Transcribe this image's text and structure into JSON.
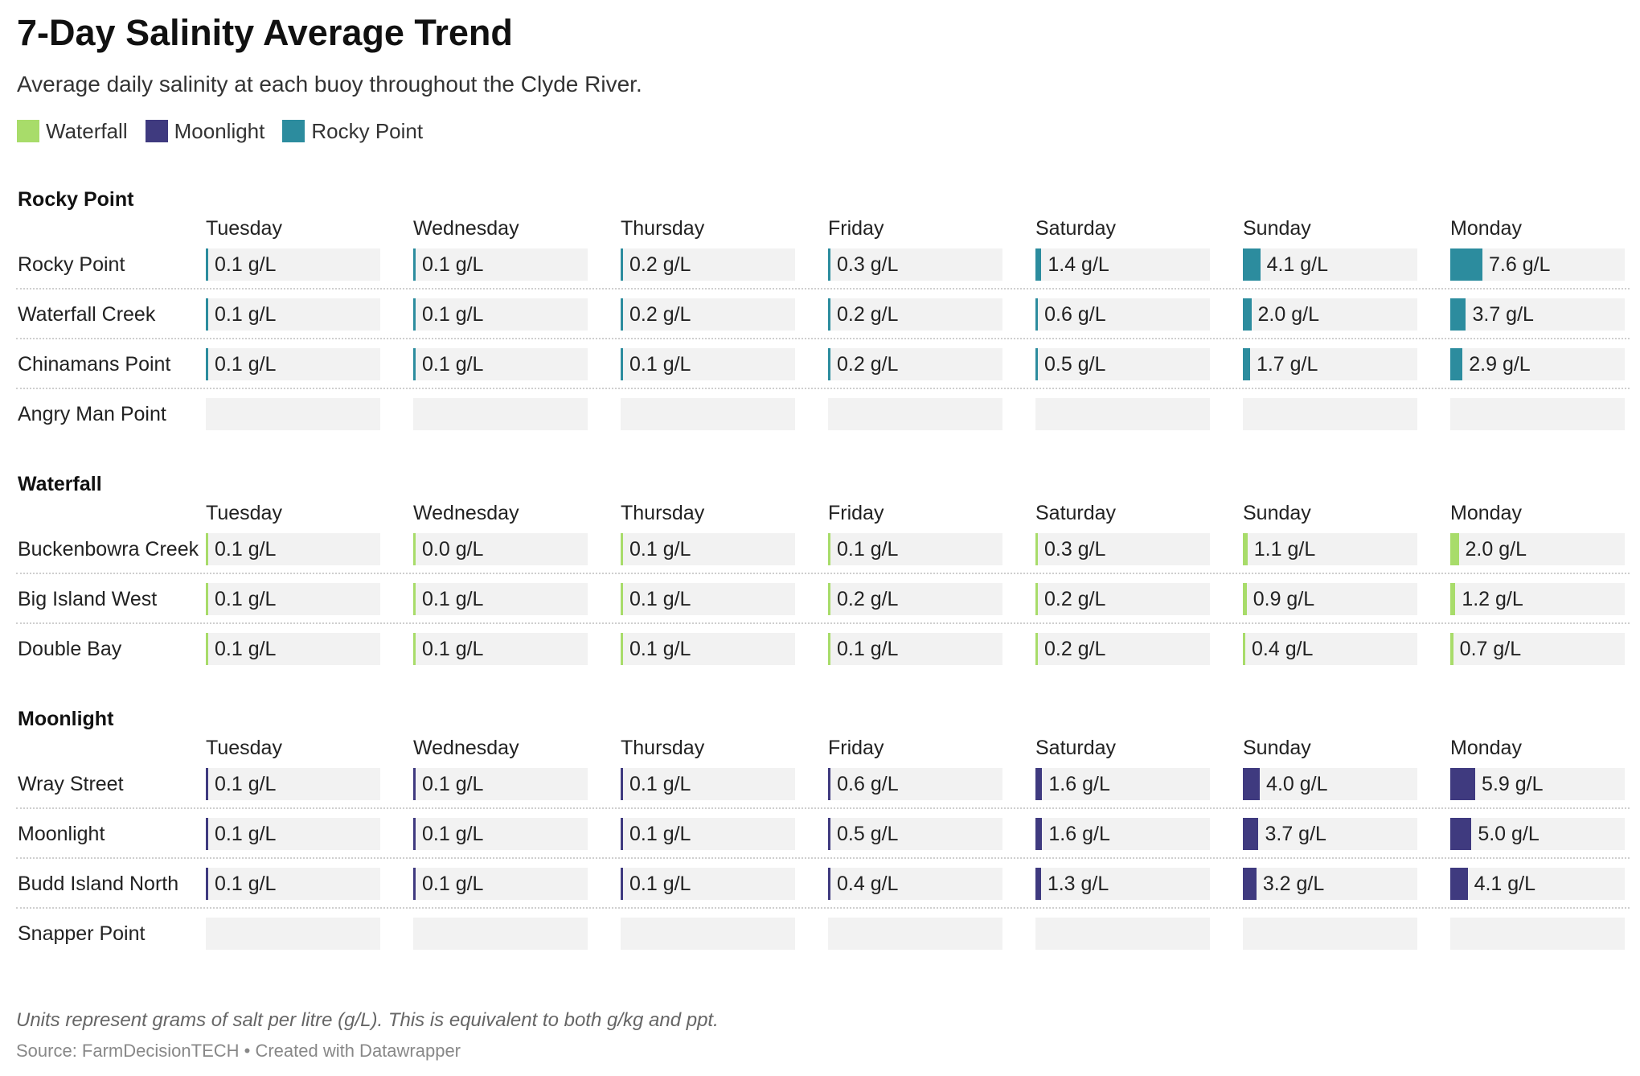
{
  "chart_data": {
    "type": "table",
    "title": "7-Day Salinity Average Trend",
    "subtitle": "Average daily salinity at each buoy throughout the Clyde River.",
    "unit": "g/L",
    "x": [
      "Tuesday",
      "Wednesday",
      "Thursday",
      "Friday",
      "Saturday",
      "Sunday",
      "Monday"
    ],
    "value_max": 7.6,
    "legend": [
      {
        "name": "Waterfall",
        "color": "#a8dc6a"
      },
      {
        "name": "Moonlight",
        "color": "#3f3a7f"
      },
      {
        "name": "Rocky Point",
        "color": "#2c8c9e"
      }
    ],
    "groups": [
      {
        "name": "Rocky Point",
        "color": "#2c8c9e",
        "rows": [
          {
            "name": "Rocky Point",
            "values": [
              0.1,
              0.1,
              0.2,
              0.3,
              1.4,
              4.1,
              7.6
            ],
            "labels": [
              "0.1 g/L",
              "0.1 g/L",
              "0.2 g/L",
              "0.3 g/L",
              "1.4 g/L",
              "4.1 g/L",
              "7.6 g/L"
            ]
          },
          {
            "name": "Waterfall Creek",
            "values": [
              0.1,
              0.1,
              0.2,
              0.2,
              0.6,
              2.0,
              3.7
            ],
            "labels": [
              "0.1 g/L",
              "0.1 g/L",
              "0.2 g/L",
              "0.2 g/L",
              "0.6 g/L",
              "2.0 g/L",
              "3.7 g/L"
            ]
          },
          {
            "name": "Chinamans Point",
            "values": [
              0.1,
              0.1,
              0.1,
              0.2,
              0.5,
              1.7,
              2.9
            ],
            "labels": [
              "0.1 g/L",
              "0.1 g/L",
              "0.1 g/L",
              "0.2 g/L",
              "0.5 g/L",
              "1.7 g/L",
              "2.9 g/L"
            ]
          },
          {
            "name": "Angry Man Point",
            "values": [
              null,
              null,
              null,
              null,
              null,
              null,
              null
            ],
            "labels": [
              "",
              "",
              "",
              "",
              "",
              "",
              ""
            ]
          }
        ]
      },
      {
        "name": "Waterfall",
        "color": "#a8dc6a",
        "rows": [
          {
            "name": "Buckenbowra Creek",
            "values": [
              0.1,
              0.0,
              0.1,
              0.1,
              0.3,
              1.1,
              2.0
            ],
            "labels": [
              "0.1 g/L",
              "0.0 g/L",
              "0.1 g/L",
              "0.1 g/L",
              "0.3 g/L",
              "1.1 g/L",
              "2.0 g/L"
            ]
          },
          {
            "name": "Big Island West",
            "values": [
              0.1,
              0.1,
              0.1,
              0.2,
              0.2,
              0.9,
              1.2
            ],
            "labels": [
              "0.1 g/L",
              "0.1 g/L",
              "0.1 g/L",
              "0.2 g/L",
              "0.2 g/L",
              "0.9 g/L",
              "1.2 g/L"
            ]
          },
          {
            "name": "Double Bay",
            "values": [
              0.1,
              0.1,
              0.1,
              0.1,
              0.2,
              0.4,
              0.7
            ],
            "labels": [
              "0.1 g/L",
              "0.1 g/L",
              "0.1 g/L",
              "0.1 g/L",
              "0.2 g/L",
              "0.4 g/L",
              "0.7 g/L"
            ]
          }
        ]
      },
      {
        "name": "Moonlight",
        "color": "#3f3a7f",
        "rows": [
          {
            "name": "Wray Street",
            "values": [
              0.1,
              0.1,
              0.1,
              0.6,
              1.6,
              4.0,
              5.9
            ],
            "labels": [
              "0.1 g/L",
              "0.1 g/L",
              "0.1 g/L",
              "0.6 g/L",
              "1.6 g/L",
              "4.0 g/L",
              "5.9 g/L"
            ]
          },
          {
            "name": "Moonlight",
            "values": [
              0.1,
              0.1,
              0.1,
              0.5,
              1.6,
              3.7,
              5.0
            ],
            "labels": [
              "0.1 g/L",
              "0.1 g/L",
              "0.1 g/L",
              "0.5 g/L",
              "1.6 g/L",
              "3.7 g/L",
              "5.0 g/L"
            ]
          },
          {
            "name": "Budd Island North",
            "values": [
              0.1,
              0.1,
              0.1,
              0.4,
              1.3,
              3.2,
              4.1
            ],
            "labels": [
              "0.1 g/L",
              "0.1 g/L",
              "0.1 g/L",
              "0.4 g/L",
              "1.3 g/L",
              "3.2 g/L",
              "4.1 g/L"
            ]
          },
          {
            "name": "Snapper Point",
            "values": [
              null,
              null,
              null,
              null,
              null,
              null,
              null
            ],
            "labels": [
              "",
              "",
              "",
              "",
              "",
              "",
              ""
            ]
          }
        ]
      }
    ],
    "notes": "Units represent grams of salt per litre (g/L). This is equivalent to both g/kg and ppt.",
    "source": "Source: FarmDecisionTECH • Created with Datawrapper"
  }
}
